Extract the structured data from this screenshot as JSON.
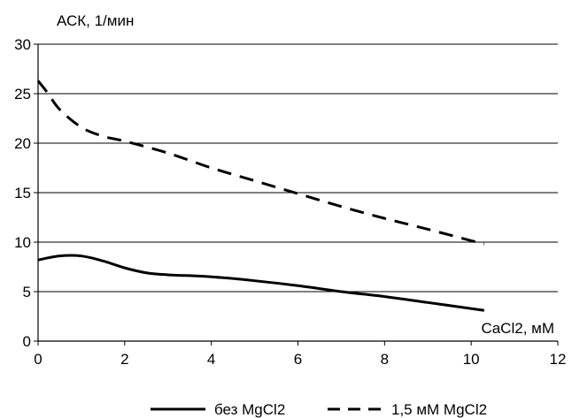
{
  "chart_data": {
    "type": "line",
    "title": "",
    "ylabel": "АСК, 1/мин",
    "xlabel": "CaCl2, мМ",
    "xlim": [
      0,
      12
    ],
    "ylim": [
      0,
      30
    ],
    "x_ticks": [
      0,
      2,
      4,
      6,
      8,
      10,
      12
    ],
    "y_ticks": [
      0,
      5,
      10,
      15,
      20,
      25,
      30
    ],
    "grid": "horizontal",
    "legend_position": "bottom",
    "series": [
      {
        "name": "без MgCl2",
        "style": "solid",
        "color": "#000000",
        "x": [
          0,
          0.5,
          1.0,
          1.5,
          2.0,
          2.5,
          3.0,
          4.0,
          5.0,
          6.0,
          7.0,
          8.0,
          9.0,
          10.3
        ],
        "y": [
          8.2,
          8.6,
          8.6,
          8.1,
          7.4,
          6.9,
          6.7,
          6.5,
          6.1,
          5.6,
          5.0,
          4.5,
          3.9,
          3.1
        ]
      },
      {
        "name": "1,5 мМ MgCl2",
        "style": "dashed",
        "color": "#000000",
        "x": [
          0,
          0.2,
          0.5,
          1.0,
          1.5,
          2.0,
          3.0,
          4.0,
          5.0,
          6.0,
          7.0,
          8.0,
          9.0,
          10.3
        ],
        "y": [
          26.3,
          25.2,
          23.4,
          21.6,
          20.7,
          20.2,
          19.0,
          17.5,
          16.2,
          14.9,
          13.6,
          12.4,
          11.3,
          9.8
        ]
      }
    ]
  }
}
